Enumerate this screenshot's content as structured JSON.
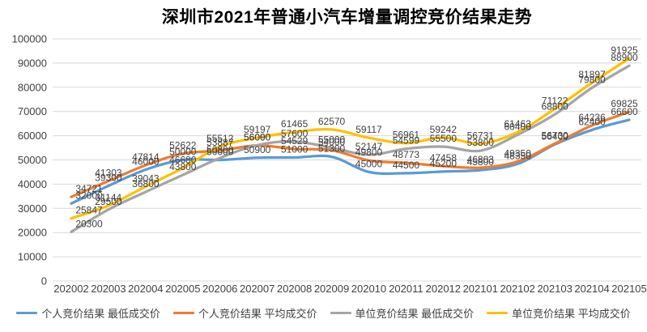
{
  "title": "深圳市2021年普通小汽车增量调控竞价结果走势",
  "chart_data": {
    "type": "line",
    "smooth": true,
    "title": "深圳市2021年普通小汽车增量调控竞价结果走势",
    "categories": [
      "202002",
      "202003",
      "202004",
      "202005",
      "202006",
      "202007",
      "202008",
      "202009",
      "202010",
      "202011",
      "202012",
      "202101",
      "202102",
      "202103",
      "202104",
      "202105"
    ],
    "series": [
      {
        "name": "个人竞价结果 最低成交价",
        "color": "#5B9BD5",
        "values": [
          32000,
          39300,
          46000,
          50000,
          50000,
          50900,
          51000,
          51300,
          45000,
          44500,
          45200,
          45800,
          48350,
          56400,
          62400,
          66600
        ]
      },
      {
        "name": "个人竞价结果 平均成交价",
        "color": "#ED7D31",
        "values": [
          34721,
          41303,
          47814,
          52622,
          53887,
          56000,
          54529,
          54000,
          49800,
          48773,
          47458,
          46803,
          49350,
          56730,
          64236,
          69825
        ]
      },
      {
        "name": "单位竞价结果 最低成交价",
        "color": "#A5A5A5",
        "values": [
          20300,
          29500,
          36800,
          43800,
          50800,
          56090,
          57600,
          55000,
          52147,
          54599,
          55500,
          53800,
          60400,
          68800,
          79800,
          88900
        ]
      },
      {
        "name": "单位竞价结果 平均成交价",
        "color": "#FFC000",
        "values": [
          25847,
          31144,
          39043,
          46680,
          55512,
          59197,
          61465,
          62570,
          59117,
          56961,
          59242,
          56731,
          61463,
          71122,
          81897,
          91925
        ]
      }
    ],
    "ylim": [
      0,
      100000
    ],
    "ytick_step": 10000,
    "yticks": [
      0,
      10000,
      20000,
      30000,
      40000,
      50000,
      60000,
      70000,
      80000,
      90000,
      100000
    ],
    "grid": true,
    "legend_position": "bottom",
    "data_labels": true,
    "colors": {
      "grid": "#D9D9D9",
      "axis_text": "#404040",
      "label_text": "#404040",
      "title_text": "#000000",
      "background": "#FFFFFF"
    }
  }
}
